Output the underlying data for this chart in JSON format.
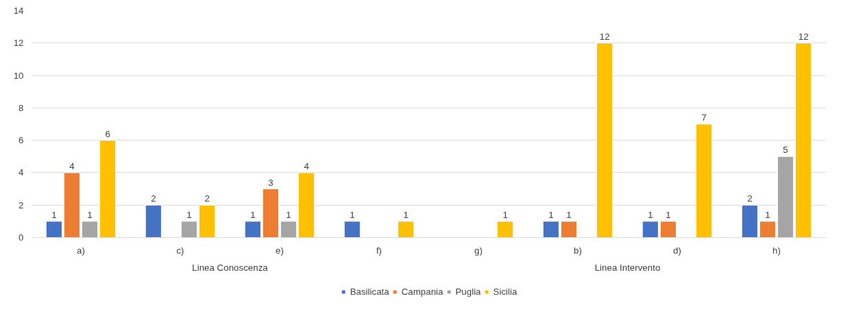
{
  "chart_data": {
    "type": "bar",
    "categories": [
      "a)",
      "c)",
      "e)",
      "f)",
      "g)",
      "b)",
      "d)",
      "h)"
    ],
    "series": [
      {
        "name": "Basilicata",
        "color": "#4472c4",
        "values": [
          1,
          2,
          1,
          1,
          null,
          1,
          1,
          2
        ]
      },
      {
        "name": "Campania",
        "color": "#ed7d31",
        "values": [
          4,
          null,
          3,
          null,
          null,
          1,
          1,
          1
        ]
      },
      {
        "name": "Puglia",
        "color": "#a5a5a5",
        "values": [
          1,
          1,
          1,
          null,
          null,
          null,
          null,
          5
        ]
      },
      {
        "name": "Sicilia",
        "color": "#ffc000",
        "values": [
          6,
          2,
          4,
          1,
          1,
          12,
          7,
          12
        ]
      }
    ],
    "ylim": [
      0,
      14
    ],
    "yticks": [
      0,
      2,
      4,
      6,
      8,
      10,
      12,
      14
    ],
    "grid": "y",
    "legend": "bottom",
    "data_labels": true,
    "annotations": [
      "Linea Conoscenza",
      "Linea Intervento"
    ]
  }
}
